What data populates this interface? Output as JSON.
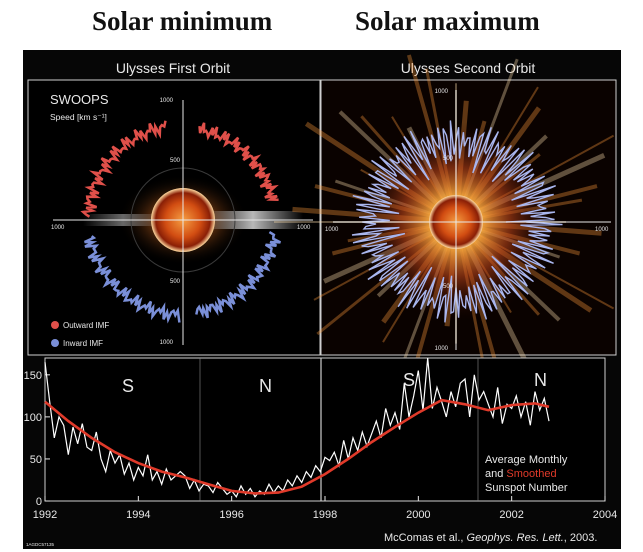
{
  "headings": {
    "left": "Solar minimum",
    "right": "Solar maximum"
  },
  "panels": {
    "first_orbit_title": "Ulysses First Orbit",
    "second_orbit_title": "Ulysses Second Orbit",
    "instrument": "SWOOPS",
    "speed_label": "Speed [km s⁻¹]",
    "ticks": {
      "t1000": "1000",
      "t500": "500"
    },
    "legend_outward": "Outward IMF",
    "legend_inward": "Inward IMF",
    "colors": {
      "outward": "#e0504a",
      "inward": "#7a8fd8",
      "sun": "#e0601a"
    }
  },
  "chart_data": {
    "type": "line",
    "title": "",
    "xlabel": "",
    "ylabel": "",
    "xlim": [
      1992,
      2004
    ],
    "ylim": [
      0,
      170
    ],
    "x_ticks": [
      "1992",
      "1994",
      "1996",
      "1998",
      "2000",
      "2002",
      "2004"
    ],
    "y_ticks": [
      "0",
      "50",
      "100",
      "150"
    ],
    "annotations": [
      "S",
      "N",
      "S",
      "N"
    ],
    "legend_text": [
      "Average Monthly",
      "and",
      "Smoothed",
      "Sunspot Number"
    ],
    "series": [
      {
        "name": "Average Monthly",
        "color": "#ffffff",
        "x": [
          1992.0,
          1992.1,
          1992.2,
          1992.3,
          1992.4,
          1992.5,
          1992.6,
          1992.7,
          1992.8,
          1992.9,
          1993.0,
          1993.1,
          1993.2,
          1993.3,
          1993.4,
          1993.5,
          1993.6,
          1993.7,
          1993.8,
          1993.9,
          1994.0,
          1994.1,
          1994.2,
          1994.3,
          1994.4,
          1994.5,
          1994.6,
          1994.7,
          1994.8,
          1994.9,
          1995.0,
          1995.1,
          1995.2,
          1995.3,
          1995.4,
          1995.5,
          1995.6,
          1995.7,
          1995.8,
          1995.9,
          1996.0,
          1996.1,
          1996.2,
          1996.3,
          1996.4,
          1996.5,
          1996.6,
          1996.7,
          1996.8,
          1996.9,
          1997.0,
          1997.1,
          1997.2,
          1997.3,
          1997.4,
          1997.5,
          1997.6,
          1997.7,
          1997.8,
          1997.9,
          1998.0,
          1998.1,
          1998.2,
          1998.3,
          1998.4,
          1998.5,
          1998.6,
          1998.7,
          1998.8,
          1998.9,
          1999.0,
          1999.1,
          1999.2,
          1999.3,
          1999.4,
          1999.5,
          1999.6,
          1999.7,
          1999.8,
          1999.9,
          2000.0,
          2000.1,
          2000.2,
          2000.3,
          2000.4,
          2000.5,
          2000.6,
          2000.7,
          2000.8,
          2000.9,
          2001.0,
          2001.1,
          2001.2,
          2001.3,
          2001.4,
          2001.5,
          2001.6,
          2001.7,
          2001.8,
          2001.9,
          2002.0,
          2002.1,
          2002.2,
          2002.3,
          2002.4,
          2002.5,
          2002.6,
          2002.7,
          2002.8
        ],
        "values": [
          165,
          118,
          75,
          100,
          90,
          55,
          88,
          68,
          92,
          64,
          60,
          82,
          50,
          35,
          60,
          45,
          55,
          32,
          45,
          25,
          40,
          30,
          55,
          25,
          35,
          20,
          38,
          25,
          30,
          35,
          30,
          15,
          25,
          12,
          20,
          18,
          10,
          22,
          15,
          8,
          12,
          5,
          18,
          8,
          15,
          5,
          12,
          8,
          20,
          10,
          18,
          12,
          25,
          18,
          30,
          22,
          35,
          28,
          42,
          35,
          52,
          48,
          58,
          42,
          72,
          50,
          75,
          60,
          82,
          65,
          80,
          95,
          75,
          110,
          90,
          105,
          85,
          140,
          100,
          125,
          155,
          108,
          170,
          110,
          135,
          118,
          100,
          130,
          112,
          140,
          145,
          100,
          150,
          120,
          130,
          115,
          100,
          135,
          92,
          115,
          110,
          125,
          100,
          118,
          90,
          130,
          108,
          122,
          95
        ]
      },
      {
        "name": "Smoothed",
        "color": "#e03a2a",
        "x": [
          1992.0,
          1992.5,
          1993.0,
          1993.5,
          1994.0,
          1994.5,
          1995.0,
          1995.5,
          1996.0,
          1996.5,
          1997.0,
          1997.5,
          1998.0,
          1998.5,
          1999.0,
          1999.5,
          2000.0,
          2000.5,
          2001.0,
          2001.5,
          2002.0,
          2002.5,
          2002.8
        ],
        "values": [
          118,
          95,
          75,
          58,
          45,
          35,
          28,
          20,
          12,
          9,
          10,
          17,
          32,
          50,
          70,
          88,
          105,
          120,
          115,
          108,
          114,
          116,
          112
        ]
      }
    ]
  },
  "credit": {
    "prefix": "McComas et al., ",
    "journal": "Geophys. Res. Lett.",
    "suffix": ", 2003.",
    "image_id": "1AGDC57135"
  }
}
